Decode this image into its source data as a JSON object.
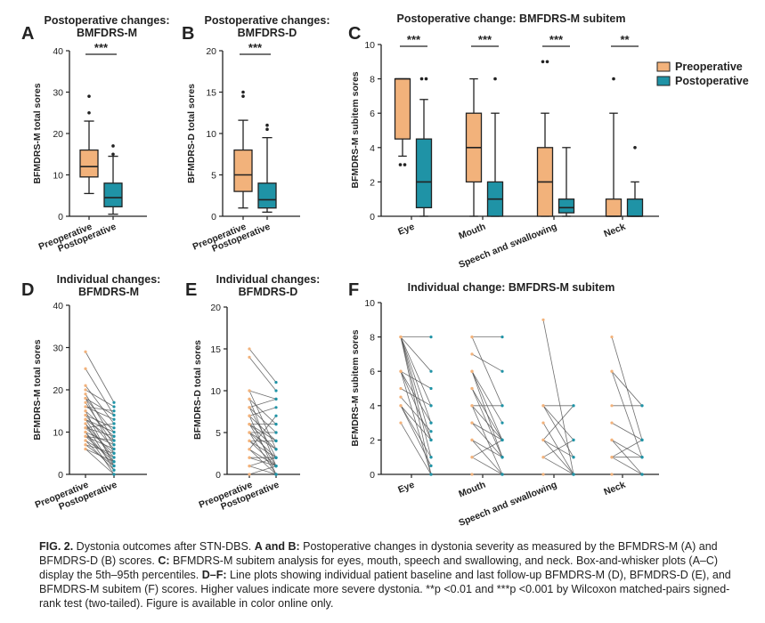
{
  "colors": {
    "pre": "#f2b27b",
    "post": "#1f93a6",
    "axis": "#222222",
    "line": "#555555"
  },
  "chart_data": [
    {
      "panel": "A",
      "type": "box",
      "title": [
        "Postoperative changes:",
        "BMFDRS-M"
      ],
      "ylabel": "BFMDRS-M total sores",
      "ylim": [
        0,
        40
      ],
      "yticks": [
        "0",
        "10",
        "20",
        "30",
        "40"
      ],
      "categories": [
        "Preoperative",
        "Postoperative"
      ],
      "significance": "***",
      "boxes": [
        {
          "whisker_low": 5.5,
          "q1": 9.5,
          "median": 12,
          "q3": 16,
          "whisker_high": 23,
          "outliers": [
            25,
            29
          ]
        },
        {
          "whisker_low": 0.5,
          "q1": 2.3,
          "median": 4.5,
          "q3": 8,
          "whisker_high": 14.5,
          "outliers": [
            15,
            17
          ]
        }
      ]
    },
    {
      "panel": "B",
      "type": "box",
      "title": [
        "Postoperative changes:",
        "BMFDRS-D"
      ],
      "ylabel": "BFMDRS-D total sores",
      "ylim": [
        0,
        20
      ],
      "yticks": [
        "0",
        "5",
        "10",
        "15",
        "20"
      ],
      "categories": [
        "Preoperative",
        "Postoperative"
      ],
      "significance": "***",
      "boxes": [
        {
          "whisker_low": 1,
          "q1": 3,
          "median": 5,
          "q3": 8,
          "whisker_high": 11.6,
          "outliers": [
            14.5,
            15
          ]
        },
        {
          "whisker_low": 0.5,
          "q1": 1,
          "median": 2,
          "q3": 4,
          "whisker_high": 9.5,
          "outliers": [
            10.5,
            11
          ]
        }
      ]
    },
    {
      "panel": "C",
      "type": "box",
      "title": "Postoperative change: BMFDRS-M subitem",
      "ylabel": "BFMDRS-M subitem sores",
      "ylim": [
        0,
        10
      ],
      "yticks": [
        "0",
        "2",
        "4",
        "6",
        "8",
        "10"
      ],
      "categories": [
        "Eye",
        "Mouth",
        "Speech and swallowing",
        "Neck"
      ],
      "legend": [
        "Preoperative",
        "Postoperative"
      ],
      "legend_position": "top-right",
      "significance": [
        "***",
        "***",
        "***",
        "**"
      ],
      "boxes": [
        [
          {
            "whisker_low": 3.5,
            "q1": 4.5,
            "median": 8,
            "q3": 8,
            "whisker_high": 8,
            "outliers": [
              3,
              3
            ]
          },
          {
            "whisker_low": 0,
            "q1": 0.5,
            "median": 2,
            "q3": 4.5,
            "whisker_high": 6.8,
            "outliers": [
              8,
              8
            ]
          }
        ],
        [
          {
            "whisker_low": 0,
            "q1": 2,
            "median": 4,
            "q3": 6,
            "whisker_high": 8,
            "outliers": []
          },
          {
            "whisker_low": 0,
            "q1": 0,
            "median": 1,
            "q3": 2,
            "whisker_high": 6,
            "outliers": [
              8
            ]
          }
        ],
        [
          {
            "whisker_low": 0,
            "q1": 0,
            "median": 2,
            "q3": 4,
            "whisker_high": 6,
            "outliers": [
              9,
              9
            ]
          },
          {
            "whisker_low": 0,
            "q1": 0.2,
            "median": 0.5,
            "q3": 1,
            "whisker_high": 4,
            "outliers": []
          }
        ],
        [
          {
            "whisker_low": 0,
            "q1": 0,
            "median": 0,
            "q3": 1,
            "whisker_high": 6,
            "outliers": [
              8
            ]
          },
          {
            "whisker_low": 0,
            "q1": 0,
            "median": 0,
            "q3": 1,
            "whisker_high": 2,
            "outliers": [
              4
            ]
          }
        ]
      ]
    },
    {
      "panel": "D",
      "type": "line",
      "title": [
        "Individual changes:",
        "BFMDRS-M"
      ],
      "ylabel": "BFMDRS-M total sores",
      "ylim": [
        0,
        40
      ],
      "yticks": [
        "0",
        "10",
        "20",
        "30",
        "40"
      ],
      "categories": [
        "Preoperative",
        "Postoperative"
      ],
      "pairs": [
        [
          29,
          17
        ],
        [
          25,
          14
        ],
        [
          21,
          12
        ],
        [
          20,
          16
        ],
        [
          19,
          8
        ],
        [
          18,
          10
        ],
        [
          18,
          5
        ],
        [
          17,
          7
        ],
        [
          16,
          13
        ],
        [
          15,
          9
        ],
        [
          15,
          2
        ],
        [
          14,
          11
        ],
        [
          14,
          6
        ],
        [
          13,
          3
        ],
        [
          13,
          8
        ],
        [
          12,
          4
        ],
        [
          12,
          1
        ],
        [
          11,
          9
        ],
        [
          11,
          5
        ],
        [
          10,
          7
        ],
        [
          10,
          2
        ],
        [
          10,
          0
        ],
        [
          9,
          6
        ],
        [
          9,
          3
        ],
        [
          8,
          4
        ],
        [
          8,
          1
        ],
        [
          7,
          5
        ],
        [
          7,
          2
        ],
        [
          6,
          3
        ],
        [
          6,
          0
        ],
        [
          16,
          15
        ],
        [
          13,
          10
        ],
        [
          11,
          12
        ],
        [
          9,
          8
        ],
        [
          18,
          14
        ]
      ]
    },
    {
      "panel": "E",
      "type": "line",
      "title": [
        "Individual changes:",
        "BFMDRS-D"
      ],
      "ylabel": "BFMDRS-D total sores",
      "ylim": [
        0,
        20
      ],
      "yticks": [
        "0",
        "5",
        "10",
        "15",
        "20"
      ],
      "categories": [
        "Preoperative",
        "Postoperative"
      ],
      "pairs": [
        [
          15,
          11
        ],
        [
          14,
          10
        ],
        [
          10,
          9
        ],
        [
          10,
          3
        ],
        [
          9,
          6
        ],
        [
          9,
          1
        ],
        [
          8,
          5
        ],
        [
          8,
          2
        ],
        [
          7,
          8
        ],
        [
          7,
          4
        ],
        [
          7,
          0
        ],
        [
          6,
          3
        ],
        [
          6,
          6
        ],
        [
          6,
          1
        ],
        [
          5,
          2
        ],
        [
          5,
          5
        ],
        [
          5,
          0
        ],
        [
          4,
          1
        ],
        [
          4,
          4
        ],
        [
          4,
          2
        ],
        [
          3,
          0
        ],
        [
          3,
          7
        ],
        [
          3,
          1
        ],
        [
          2,
          1
        ],
        [
          2,
          2
        ],
        [
          1,
          0
        ],
        [
          1,
          2
        ],
        [
          0,
          0
        ],
        [
          0,
          1
        ],
        [
          8,
          9
        ],
        [
          6,
          4
        ],
        [
          5,
          3
        ]
      ]
    },
    {
      "panel": "F",
      "type": "line",
      "title": "Individual change: BMFDRS-M subitem",
      "ylabel": "BFMDRS-M subitem sores",
      "ylim": [
        0,
        10
      ],
      "yticks": [
        "0",
        "2",
        "4",
        "6",
        "8",
        "10"
      ],
      "categories": [
        "Eye",
        "Mouth",
        "Speech and swallowing",
        "Neck"
      ],
      "groups": [
        [
          [
            8,
            8
          ],
          [
            8,
            6
          ],
          [
            8,
            4
          ],
          [
            8,
            2
          ],
          [
            8,
            1
          ],
          [
            8,
            0
          ],
          [
            6,
            5
          ],
          [
            6,
            3
          ],
          [
            6,
            2
          ],
          [
            6,
            0
          ],
          [
            5,
            4
          ],
          [
            4,
            2
          ],
          [
            4,
            1
          ],
          [
            4,
            0.5
          ],
          [
            3,
            0
          ],
          [
            4.5,
            2.5
          ],
          [
            8,
            3
          ]
        ],
        [
          [
            8,
            8
          ],
          [
            8,
            4
          ],
          [
            7,
            6
          ],
          [
            6,
            3
          ],
          [
            6,
            1
          ],
          [
            5,
            2
          ],
          [
            4,
            4
          ],
          [
            4,
            2
          ],
          [
            4,
            0
          ],
          [
            3,
            1
          ],
          [
            3,
            2
          ],
          [
            2,
            0
          ],
          [
            2,
            1
          ],
          [
            1,
            0
          ],
          [
            1,
            2
          ],
          [
            0,
            0
          ],
          [
            6,
            2
          ],
          [
            5,
            1
          ]
        ],
        [
          [
            9,
            0
          ],
          [
            4,
            4
          ],
          [
            4,
            2
          ],
          [
            4,
            1
          ],
          [
            3,
            0
          ],
          [
            2,
            1
          ],
          [
            2,
            0
          ],
          [
            1,
            0
          ],
          [
            1,
            2
          ],
          [
            0,
            0
          ],
          [
            2,
            4
          ]
        ],
        [
          [
            8,
            2
          ],
          [
            6,
            4
          ],
          [
            6,
            1
          ],
          [
            4,
            4
          ],
          [
            3,
            2
          ],
          [
            2,
            0
          ],
          [
            1,
            1
          ],
          [
            1,
            0
          ],
          [
            0,
            0
          ],
          [
            2,
            1
          ],
          [
            1,
            2
          ]
        ]
      ]
    }
  ],
  "panel_labels": [
    "A",
    "B",
    "C",
    "D",
    "E",
    "F"
  ],
  "caption": {
    "fig": "FIG. 2.",
    "text1": " Dystonia outcomes after STN-DBS. ",
    "ab": "A and B:",
    "text2": " Postoperative changes in dystonia severity as measured by the BFMDRS-M (A) and BFMDRS-D (B) scores. ",
    "c": "C:",
    "text3": " BFMDRS-M subitem analysis for eyes, mouth, speech and swallowing, and neck. Box-and-whisker plots (A–C) display the 5th–95th percentiles. ",
    "df": "D–F:",
    "text4": " Line plots showing individual patient baseline and last follow-up BFMDRS-M (D), BFMDRS-D (E), and BFMDRS-M subitem (F) scores. Higher values indicate more severe dystonia. **p <0.01 and ***p <0.001 by Wilcoxon matched-pairs signed-rank test (two-tailed). Figure is available in color online only."
  }
}
